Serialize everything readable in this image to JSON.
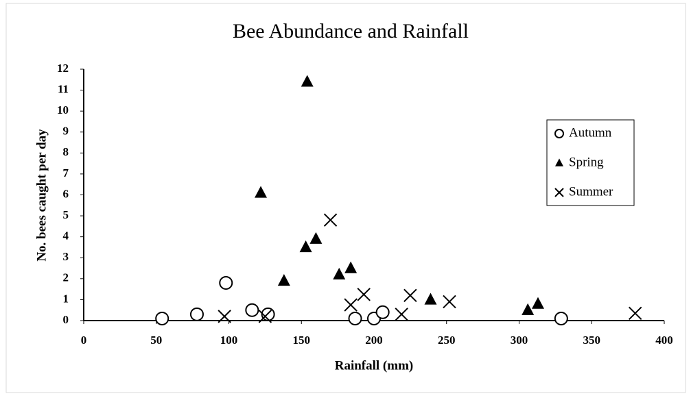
{
  "chart_data": {
    "type": "scatter",
    "title": "Bee Abundance  and Rainfall",
    "x_label": "Rainfall (mm)",
    "y_label": "No. bees caught per day",
    "xlim": [
      0,
      400
    ],
    "xticks": [
      0,
      50,
      100,
      150,
      200,
      250,
      300,
      350,
      400
    ],
    "ylim": [
      0,
      12
    ],
    "yticks": [
      0,
      1,
      2,
      3,
      4,
      5,
      6,
      7,
      8,
      9,
      10,
      11,
      12
    ],
    "legend": "right",
    "series": [
      {
        "name": "Autumn",
        "color": "#000000",
        "marker": "circle",
        "x": [
          54,
          78,
          98,
          116,
          127,
          187,
          200,
          206,
          329
        ],
        "values": [
          0.1,
          0.3,
          1.8,
          0.5,
          0.3,
          0.1,
          0.1,
          0.4,
          0.1
        ]
      },
      {
        "name": "Spring",
        "color": "#000000",
        "marker": "triangle",
        "x": [
          154,
          122,
          153,
          160,
          138,
          176,
          184,
          239,
          306,
          313
        ],
        "values": [
          11.4,
          6.1,
          3.5,
          3.9,
          1.9,
          2.2,
          2.5,
          1.0,
          0.5,
          0.8
        ]
      },
      {
        "name": "Summer",
        "color": "#000000",
        "marker": "x",
        "x": [
          97,
          125,
          170,
          184,
          193,
          219,
          225,
          252,
          380
        ],
        "values": [
          0.2,
          0.2,
          4.8,
          0.75,
          1.25,
          0.3,
          1.2,
          0.9,
          0.35
        ]
      }
    ]
  }
}
